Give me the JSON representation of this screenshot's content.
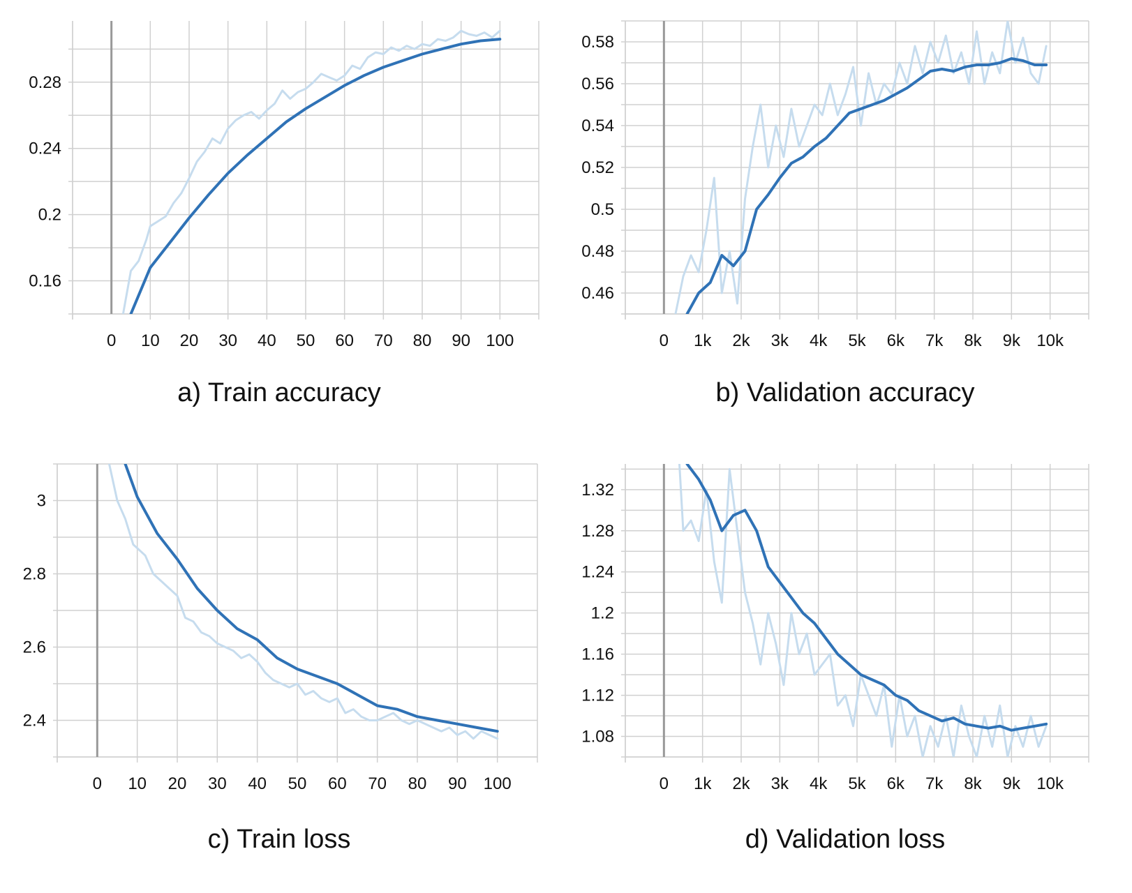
{
  "colors": {
    "smoothed": "#2f72b6",
    "raw": "#c6dcee",
    "grid": "#d0d0d0",
    "zero_line": "#999999"
  },
  "chart_data": [
    {
      "id": "train-accuracy",
      "type": "line",
      "caption": "a) Train accuracy",
      "xlim": [
        -10,
        110
      ],
      "ylim": [
        0.14,
        0.317
      ],
      "x_ticks": [
        0,
        10,
        20,
        30,
        40,
        50,
        60,
        70,
        80,
        90,
        100
      ],
      "x_tick_labels": [
        "0",
        "10",
        "20",
        "30",
        "40",
        "50",
        "60",
        "70",
        "80",
        "90",
        "100"
      ],
      "y_ticks": [
        0.16,
        0.2,
        0.24,
        0.28
      ],
      "y_tick_labels": [
        "0.16",
        "0.2",
        "0.24",
        "0.28"
      ],
      "series": [
        {
          "role": "raw",
          "x": [
            3,
            5,
            7,
            9,
            10,
            12,
            14,
            16,
            18,
            20,
            22,
            24,
            26,
            28,
            30,
            32,
            34,
            36,
            38,
            40,
            42,
            44,
            46,
            48,
            50,
            52,
            54,
            56,
            58,
            60,
            62,
            64,
            66,
            68,
            70,
            72,
            74,
            76,
            78,
            80,
            82,
            84,
            86,
            88,
            90,
            92,
            94,
            96,
            98,
            100
          ],
          "y": [
            0.14,
            0.166,
            0.172,
            0.185,
            0.193,
            0.196,
            0.199,
            0.207,
            0.213,
            0.222,
            0.232,
            0.238,
            0.246,
            0.243,
            0.252,
            0.257,
            0.26,
            0.262,
            0.258,
            0.263,
            0.267,
            0.275,
            0.27,
            0.274,
            0.276,
            0.28,
            0.285,
            0.283,
            0.281,
            0.284,
            0.29,
            0.288,
            0.295,
            0.298,
            0.297,
            0.301,
            0.299,
            0.302,
            0.3,
            0.303,
            0.302,
            0.306,
            0.305,
            0.307,
            0.311,
            0.309,
            0.308,
            0.31,
            0.307,
            0.311
          ]
        },
        {
          "role": "smoothed",
          "x": [
            5,
            10,
            15,
            20,
            25,
            30,
            35,
            40,
            45,
            50,
            55,
            60,
            65,
            70,
            75,
            80,
            85,
            90,
            95,
            100
          ],
          "y": [
            0.14,
            0.168,
            0.183,
            0.198,
            0.212,
            0.225,
            0.236,
            0.246,
            0.256,
            0.264,
            0.271,
            0.278,
            0.284,
            0.289,
            0.293,
            0.297,
            0.3,
            0.303,
            0.305,
            0.306
          ]
        }
      ]
    },
    {
      "id": "validation-accuracy",
      "type": "line",
      "caption": "b) Validation accuracy",
      "xlim": [
        -1000,
        11000
      ],
      "ylim": [
        0.45,
        0.59
      ],
      "x_ticks": [
        0,
        1000,
        2000,
        3000,
        4000,
        5000,
        6000,
        7000,
        8000,
        9000,
        10000
      ],
      "x_tick_labels": [
        "0",
        "1k",
        "2k",
        "3k",
        "4k",
        "5k",
        "6k",
        "7k",
        "8k",
        "9k",
        "10k"
      ],
      "y_ticks": [
        0.46,
        0.48,
        0.5,
        0.52,
        0.54,
        0.56,
        0.58
      ],
      "y_tick_labels": [
        "0.46",
        "0.48",
        "0.5",
        "0.52",
        "0.54",
        "0.56",
        "0.58"
      ],
      "series": [
        {
          "role": "raw",
          "x": [
            300,
            500,
            700,
            900,
            1100,
            1300,
            1500,
            1700,
            1900,
            2100,
            2300,
            2500,
            2700,
            2900,
            3100,
            3300,
            3500,
            3700,
            3900,
            4100,
            4300,
            4500,
            4700,
            4900,
            5100,
            5300,
            5500,
            5700,
            5900,
            6100,
            6300,
            6500,
            6700,
            6900,
            7100,
            7300,
            7500,
            7700,
            7900,
            8100,
            8300,
            8500,
            8700,
            8900,
            9100,
            9300,
            9500,
            9700,
            9900
          ],
          "y": [
            0.45,
            0.468,
            0.478,
            0.47,
            0.49,
            0.515,
            0.46,
            0.48,
            0.455,
            0.505,
            0.53,
            0.55,
            0.52,
            0.54,
            0.525,
            0.548,
            0.53,
            0.54,
            0.55,
            0.545,
            0.56,
            0.545,
            0.555,
            0.568,
            0.54,
            0.565,
            0.55,
            0.56,
            0.555,
            0.57,
            0.56,
            0.578,
            0.565,
            0.58,
            0.57,
            0.583,
            0.565,
            0.575,
            0.56,
            0.585,
            0.56,
            0.575,
            0.565,
            0.59,
            0.57,
            0.582,
            0.565,
            0.56,
            0.578
          ]
        },
        {
          "role": "smoothed",
          "x": [
            600,
            900,
            1200,
            1500,
            1800,
            2100,
            2400,
            2700,
            3000,
            3300,
            3600,
            3900,
            4200,
            4500,
            4800,
            5100,
            5400,
            5700,
            6000,
            6300,
            6600,
            6900,
            7200,
            7500,
            7800,
            8100,
            8400,
            8700,
            9000,
            9300,
            9600,
            9900
          ],
          "y": [
            0.45,
            0.46,
            0.465,
            0.478,
            0.473,
            0.48,
            0.5,
            0.507,
            0.515,
            0.522,
            0.525,
            0.53,
            0.534,
            0.54,
            0.546,
            0.548,
            0.55,
            0.552,
            0.555,
            0.558,
            0.562,
            0.566,
            0.567,
            0.566,
            0.568,
            0.569,
            0.569,
            0.57,
            0.572,
            0.571,
            0.569,
            0.569
          ]
        }
      ]
    },
    {
      "id": "train-loss",
      "type": "line",
      "caption": "c) Train loss",
      "xlim": [
        -10,
        110
      ],
      "ylim": [
        2.3,
        3.1
      ],
      "x_ticks": [
        0,
        10,
        20,
        30,
        40,
        50,
        60,
        70,
        80,
        90,
        100
      ],
      "x_tick_labels": [
        "0",
        "10",
        "20",
        "30",
        "40",
        "50",
        "60",
        "70",
        "80",
        "90",
        "100"
      ],
      "y_ticks": [
        2.4,
        2.6,
        2.8,
        3.0
      ],
      "y_tick_labels": [
        "2.4",
        "2.6",
        "2.8",
        "3"
      ],
      "series": [
        {
          "role": "raw",
          "x": [
            3,
            5,
            7,
            9,
            10,
            12,
            14,
            16,
            18,
            20,
            22,
            24,
            26,
            28,
            30,
            32,
            34,
            36,
            38,
            40,
            42,
            44,
            46,
            48,
            50,
            52,
            54,
            56,
            58,
            60,
            62,
            64,
            66,
            68,
            70,
            72,
            74,
            76,
            78,
            80,
            82,
            84,
            86,
            88,
            90,
            92,
            94,
            96,
            98,
            100
          ],
          "y": [
            3.1,
            3.0,
            2.95,
            2.88,
            2.87,
            2.85,
            2.8,
            2.78,
            2.76,
            2.74,
            2.68,
            2.67,
            2.64,
            2.63,
            2.61,
            2.6,
            2.59,
            2.57,
            2.58,
            2.56,
            2.53,
            2.51,
            2.5,
            2.49,
            2.5,
            2.47,
            2.48,
            2.46,
            2.45,
            2.46,
            2.42,
            2.43,
            2.41,
            2.4,
            2.4,
            2.41,
            2.42,
            2.4,
            2.39,
            2.4,
            2.39,
            2.38,
            2.37,
            2.38,
            2.36,
            2.37,
            2.35,
            2.37,
            2.36,
            2.35
          ]
        },
        {
          "role": "smoothed",
          "x": [
            7,
            10,
            15,
            20,
            25,
            30,
            35,
            40,
            45,
            50,
            55,
            60,
            65,
            70,
            75,
            80,
            85,
            90,
            95,
            100
          ],
          "y": [
            3.1,
            3.01,
            2.91,
            2.84,
            2.76,
            2.7,
            2.65,
            2.62,
            2.57,
            2.54,
            2.52,
            2.5,
            2.47,
            2.44,
            2.43,
            2.41,
            2.4,
            2.39,
            2.38,
            2.37
          ]
        }
      ]
    },
    {
      "id": "validation-loss",
      "type": "line",
      "caption": "d) Validation loss",
      "xlim": [
        -1000,
        11000
      ],
      "ylim": [
        1.06,
        1.345
      ],
      "x_ticks": [
        0,
        1000,
        2000,
        3000,
        4000,
        5000,
        6000,
        7000,
        8000,
        9000,
        10000
      ],
      "x_tick_labels": [
        "0",
        "1k",
        "2k",
        "3k",
        "4k",
        "5k",
        "6k",
        "7k",
        "8k",
        "9k",
        "10k"
      ],
      "y_ticks": [
        1.08,
        1.12,
        1.16,
        1.2,
        1.24,
        1.28,
        1.32
      ],
      "y_tick_labels": [
        "1.08",
        "1.12",
        "1.16",
        "1.2",
        "1.24",
        "1.28",
        "1.32"
      ],
      "series": [
        {
          "role": "raw",
          "x": [
            400,
            500,
            700,
            900,
            1100,
            1300,
            1500,
            1700,
            1900,
            2100,
            2300,
            2500,
            2700,
            2900,
            3100,
            3300,
            3500,
            3700,
            3900,
            4100,
            4300,
            4500,
            4700,
            4900,
            5100,
            5300,
            5500,
            5700,
            5900,
            6100,
            6300,
            6500,
            6700,
            6900,
            7100,
            7300,
            7500,
            7700,
            7900,
            8100,
            8300,
            8500,
            8700,
            8900,
            9100,
            9300,
            9500,
            9700,
            9900
          ],
          "y": [
            1.345,
            1.28,
            1.29,
            1.27,
            1.32,
            1.25,
            1.21,
            1.34,
            1.28,
            1.22,
            1.19,
            1.15,
            1.2,
            1.17,
            1.13,
            1.2,
            1.16,
            1.18,
            1.14,
            1.15,
            1.16,
            1.11,
            1.12,
            1.09,
            1.14,
            1.12,
            1.1,
            1.13,
            1.07,
            1.12,
            1.08,
            1.1,
            1.06,
            1.09,
            1.07,
            1.1,
            1.06,
            1.11,
            1.08,
            1.06,
            1.1,
            1.07,
            1.11,
            1.06,
            1.09,
            1.07,
            1.1,
            1.07,
            1.09
          ]
        },
        {
          "role": "smoothed",
          "x": [
            600,
            900,
            1200,
            1500,
            1800,
            2100,
            2400,
            2700,
            3000,
            3300,
            3600,
            3900,
            4200,
            4500,
            4800,
            5100,
            5400,
            5700,
            6000,
            6300,
            6600,
            6900,
            7200,
            7500,
            7800,
            8100,
            8400,
            8700,
            9000,
            9300,
            9600,
            9900
          ],
          "y": [
            1.345,
            1.33,
            1.31,
            1.28,
            1.295,
            1.3,
            1.28,
            1.245,
            1.23,
            1.215,
            1.2,
            1.19,
            1.175,
            1.16,
            1.15,
            1.14,
            1.135,
            1.13,
            1.12,
            1.115,
            1.105,
            1.1,
            1.095,
            1.098,
            1.092,
            1.09,
            1.088,
            1.09,
            1.086,
            1.088,
            1.09,
            1.092
          ]
        }
      ]
    }
  ]
}
